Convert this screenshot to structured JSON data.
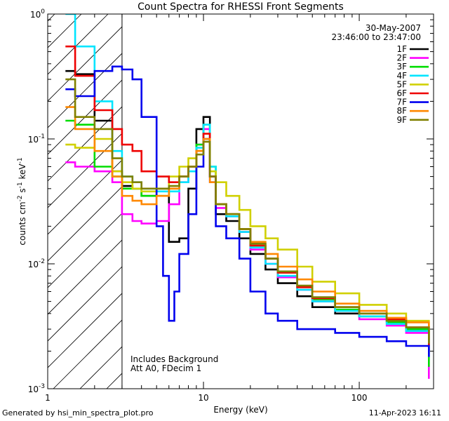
{
  "chart_data": {
    "type": "line",
    "title": "Count Spectra for RHESSI Front Segments",
    "date": "30-May-2007",
    "time_range": "23:46:00 to 23:47:00",
    "xlabel": "Energy (keV)",
    "ylabel_parts": [
      "counts cm",
      "-2",
      " s",
      "-1",
      " keV",
      "-1"
    ],
    "xscale": "log",
    "yscale": "log",
    "xlim": [
      1,
      300
    ],
    "ylim": [
      0.001,
      1
    ],
    "x_ticks": [
      {
        "value": 1,
        "label": "1"
      },
      {
        "value": 10,
        "label": "10"
      },
      {
        "value": 100,
        "label": "100"
      }
    ],
    "y_ticks": [
      {
        "value": 1,
        "base": "10",
        "exp": "0"
      },
      {
        "value": 0.1,
        "base": "10",
        "exp": "-1"
      },
      {
        "value": 0.01,
        "base": "10",
        "exp": "-2"
      },
      {
        "value": 0.001,
        "base": "10",
        "exp": "-3"
      }
    ],
    "hatched_region": {
      "x_from": 1,
      "x_to": 3
    },
    "annotations": [
      "Includes Background",
      "Att A0, FDecim 1"
    ],
    "legend_position": "top-right",
    "series": [
      {
        "name": "1F",
        "color": "#000000",
        "x": [
          1.3,
          1.5,
          2,
          2.6,
          3,
          3.5,
          4,
          5,
          6,
          7,
          8,
          9,
          10,
          11,
          12,
          14,
          17,
          20,
          25,
          30,
          40,
          50,
          70,
          100,
          150,
          200,
          280
        ],
        "y": [
          0.35,
          0.33,
          0.14,
          0.055,
          0.042,
          0.04,
          0.035,
          0.04,
          0.015,
          0.016,
          0.04,
          0.12,
          0.15,
          0.05,
          0.025,
          0.022,
          0.016,
          0.012,
          0.009,
          0.007,
          0.0055,
          0.0045,
          0.004,
          0.0038,
          0.0035,
          0.003,
          0.002
        ]
      },
      {
        "name": "2F",
        "color": "#ff00ff",
        "x": [
          1.3,
          1.5,
          2,
          2.6,
          3,
          3.5,
          4,
          5,
          6,
          7,
          8,
          9,
          10,
          11,
          12,
          14,
          17,
          20,
          25,
          30,
          40,
          50,
          70,
          100,
          150,
          200,
          280
        ],
        "y": [
          0.065,
          0.06,
          0.055,
          0.045,
          0.025,
          0.022,
          0.021,
          0.022,
          0.03,
          0.045,
          0.06,
          0.09,
          0.12,
          0.05,
          0.028,
          0.024,
          0.018,
          0.013,
          0.01,
          0.0078,
          0.0062,
          0.005,
          0.0042,
          0.0036,
          0.0032,
          0.0028,
          0.0012
        ]
      },
      {
        "name": "3F",
        "color": "#00dd00",
        "x": [
          1.3,
          1.5,
          2,
          2.6,
          3,
          3.5,
          4,
          5,
          6,
          7,
          8,
          9,
          10,
          11,
          12,
          14,
          17,
          20,
          25,
          30,
          40,
          50,
          70,
          100,
          150,
          200,
          280
        ],
        "y": [
          0.14,
          0.13,
          0.06,
          0.05,
          0.04,
          0.04,
          0.035,
          0.035,
          0.04,
          0.05,
          0.06,
          0.09,
          0.13,
          0.06,
          0.03,
          0.025,
          0.019,
          0.014,
          0.011,
          0.0085,
          0.0065,
          0.0052,
          0.0043,
          0.0038,
          0.0034,
          0.003,
          0.0015
        ]
      },
      {
        "name": "4F",
        "color": "#00e5ff",
        "x": [
          1.3,
          1.5,
          2,
          2.6,
          3,
          3.5,
          4,
          5,
          6,
          7,
          8,
          9,
          10,
          11,
          12,
          14,
          17,
          20,
          25,
          30,
          40,
          50,
          70,
          100,
          150,
          200,
          280
        ],
        "y": [
          1.0,
          0.55,
          0.2,
          0.08,
          0.05,
          0.045,
          0.04,
          0.038,
          0.038,
          0.045,
          0.055,
          0.085,
          0.13,
          0.06,
          0.03,
          0.024,
          0.018,
          0.0135,
          0.01,
          0.008,
          0.0062,
          0.005,
          0.0042,
          0.0038,
          0.0033,
          0.0029,
          0.0018
        ]
      },
      {
        "name": "5F",
        "color": "#d0d000",
        "x": [
          1.3,
          1.5,
          2,
          2.6,
          3,
          3.5,
          4,
          5,
          6,
          7,
          8,
          9,
          10,
          11,
          12,
          14,
          17,
          20,
          25,
          30,
          40,
          50,
          70,
          100,
          150,
          200,
          280
        ],
        "y": [
          0.09,
          0.085,
          0.1,
          0.055,
          0.045,
          0.04,
          0.038,
          0.04,
          0.05,
          0.06,
          0.07,
          0.08,
          0.095,
          0.055,
          0.045,
          0.035,
          0.027,
          0.02,
          0.016,
          0.013,
          0.0095,
          0.0072,
          0.0058,
          0.0047,
          0.004,
          0.0035,
          0.0025
        ]
      },
      {
        "name": "6F",
        "color": "#ee0000",
        "x": [
          1.3,
          1.5,
          2,
          2.6,
          3,
          3.5,
          4,
          5,
          6,
          7,
          8,
          9,
          10,
          11,
          12,
          14,
          17,
          20,
          25,
          30,
          40,
          50,
          70,
          100,
          150,
          200,
          280
        ],
        "y": [
          0.55,
          0.32,
          0.17,
          0.12,
          0.09,
          0.08,
          0.055,
          0.05,
          0.045,
          0.05,
          0.06,
          0.08,
          0.11,
          0.05,
          0.03,
          0.025,
          0.019,
          0.014,
          0.011,
          0.0085,
          0.0065,
          0.0053,
          0.0045,
          0.004,
          0.0036,
          0.0031,
          0.0022
        ]
      },
      {
        "name": "7F",
        "color": "#0000ee",
        "x": [
          1.3,
          1.5,
          2,
          2.6,
          3,
          3.5,
          4,
          5,
          5.5,
          6,
          6.5,
          7,
          8,
          9,
          10,
          11,
          12,
          14,
          17,
          20,
          25,
          30,
          40,
          50,
          70,
          100,
          150,
          200,
          280
        ],
        "y": [
          0.25,
          0.22,
          0.35,
          0.38,
          0.36,
          0.3,
          0.15,
          0.02,
          0.008,
          0.0035,
          0.006,
          0.012,
          0.025,
          0.06,
          0.1,
          0.045,
          0.02,
          0.016,
          0.011,
          0.006,
          0.004,
          0.0035,
          0.003,
          0.003,
          0.0028,
          0.0026,
          0.0024,
          0.0022,
          0.0018
        ]
      },
      {
        "name": "8F",
        "color": "#ff8800",
        "x": [
          1.3,
          1.5,
          2,
          2.6,
          3,
          3.5,
          4,
          5,
          6,
          7,
          8,
          9,
          10,
          11,
          12,
          14,
          17,
          20,
          25,
          30,
          40,
          50,
          70,
          100,
          150,
          200,
          280
        ],
        "y": [
          0.18,
          0.12,
          0.08,
          0.05,
          0.035,
          0.032,
          0.03,
          0.035,
          0.04,
          0.05,
          0.06,
          0.08,
          0.1,
          0.045,
          0.03,
          0.025,
          0.019,
          0.015,
          0.012,
          0.0095,
          0.0075,
          0.006,
          0.0048,
          0.0042,
          0.0037,
          0.0034,
          0.0028
        ]
      },
      {
        "name": "9F",
        "color": "#808000",
        "x": [
          1.3,
          1.5,
          2,
          2.6,
          3,
          3.5,
          4,
          5,
          6,
          7,
          8,
          9,
          10,
          11,
          12,
          14,
          17,
          20,
          25,
          30,
          40,
          50,
          70,
          100,
          150,
          200,
          280
        ],
        "y": [
          0.3,
          0.15,
          0.12,
          0.07,
          0.05,
          0.045,
          0.04,
          0.04,
          0.042,
          0.05,
          0.06,
          0.075,
          0.095,
          0.05,
          0.03,
          0.025,
          0.019,
          0.0145,
          0.011,
          0.0087,
          0.0067,
          0.0054,
          0.0045,
          0.004,
          0.0035,
          0.0031,
          0.0023
        ]
      }
    ]
  },
  "footer": {
    "left": "Generated by hsi_min_spectra_plot.pro",
    "right": "11-Apr-2023 16:11"
  }
}
